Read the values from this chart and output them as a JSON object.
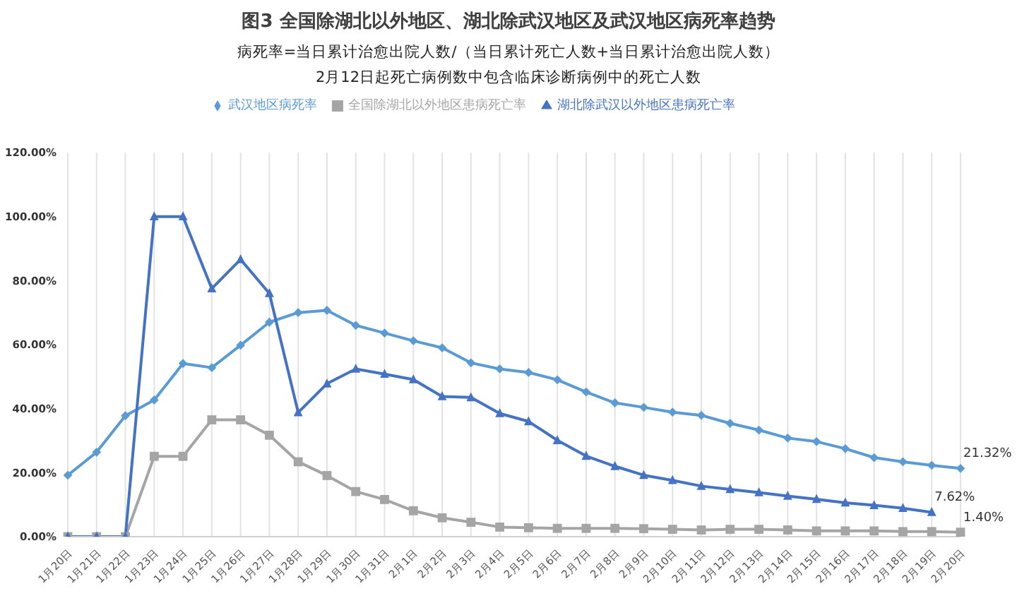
{
  "chart_data": {
    "type": "line",
    "title": "图3  全国除湖北以外地区、湖北除武汉地区及武汉地区病死率趋势",
    "subtitle": "病死率=当日累计治愈出院人数/（当日累计死亡人数+当日累计治愈出院人数）",
    "annotations": [
      "2月12日起死亡病例数中包含临床诊断病例中的死亡人数"
    ],
    "categories": [
      "1月20日",
      "1月21日",
      "1月22日",
      "1月23日",
      "1月24日",
      "1月25日",
      "1月26日",
      "1月27日",
      "1月28日",
      "1月29日",
      "1月30日",
      "1月31日",
      "2月1日",
      "2月2日",
      "2月3日",
      "2月4日",
      "2月5日",
      "2月6日",
      "2月7日",
      "2月8日",
      "2月9日",
      "2月10日",
      "2月11日",
      "2月12日",
      "2月13日",
      "2月14日",
      "2月15日",
      "2月16日",
      "2月17日",
      "2月18日",
      "2月19日",
      "2月20日"
    ],
    "series": [
      {
        "name": "武汉地区病死率",
        "color": "#5b9bd5",
        "marker": "diamond",
        "values": [
          19.2,
          26.4,
          37.8,
          42.7,
          54.1,
          52.8,
          59.8,
          67,
          70,
          70.7,
          66,
          63.6,
          61.2,
          59,
          54.3,
          52.4,
          51.3,
          49,
          45.2,
          41.8,
          40.4,
          38.9,
          37.9,
          35.4,
          33.3,
          30.8,
          29.7,
          27.5,
          24.7,
          23.4,
          22.3,
          21.32
        ],
        "value_labels": [
          null,
          null,
          null,
          null,
          null,
          null,
          null,
          null,
          null,
          null,
          null,
          null,
          null,
          null,
          null,
          null,
          null,
          null,
          null,
          null,
          null,
          null,
          null,
          null,
          null,
          null,
          null,
          null,
          null,
          null,
          null,
          "21.32%"
        ]
      },
      {
        "name": "全国除湖北以外地区患病死亡率",
        "color": "#a5a5a5",
        "marker": "square",
        "values": [
          0,
          0,
          0,
          25.1,
          25.1,
          36.5,
          36.5,
          31.7,
          23.4,
          19.1,
          14.1,
          11.6,
          8.1,
          5.9,
          4.5,
          3,
          2.8,
          2.6,
          2.6,
          2.6,
          2.5,
          2.3,
          2.1,
          2.3,
          2.3,
          2.1,
          1.8,
          1.8,
          1.8,
          1.6,
          1.6,
          1.4
        ],
        "value_labels": [
          null,
          null,
          null,
          null,
          null,
          null,
          null,
          null,
          null,
          null,
          null,
          null,
          null,
          null,
          null,
          null,
          null,
          null,
          null,
          null,
          null,
          null,
          null,
          null,
          null,
          null,
          null,
          null,
          null,
          null,
          null,
          "1.40%"
        ]
      },
      {
        "name": "湖北除武汉以外地区患病死亡率",
        "color": "#4472c4",
        "marker": "triangle",
        "values": [
          0,
          0,
          0,
          100,
          100,
          77.5,
          86.6,
          76,
          38.8,
          47.8,
          52.4,
          50.8,
          49.1,
          43.8,
          43.5,
          38.5,
          36,
          30.1,
          25.2,
          22,
          19.2,
          17.6,
          15.8,
          14.8,
          13.8,
          12.7,
          11.7,
          10.6,
          9.8,
          8.9,
          7.62,
          null
        ],
        "value_labels": [
          null,
          null,
          null,
          null,
          null,
          null,
          null,
          null,
          null,
          null,
          null,
          null,
          null,
          null,
          null,
          null,
          null,
          null,
          null,
          null,
          null,
          null,
          null,
          null,
          null,
          null,
          null,
          null,
          null,
          null,
          "7.62%",
          null
        ]
      }
    ],
    "ylim": [
      0,
      120
    ],
    "yticks": [
      {
        "value": 0,
        "label": "0.00%"
      },
      {
        "value": 20,
        "label": "20.00%"
      },
      {
        "value": 40,
        "label": "40.00%"
      },
      {
        "value": 60,
        "label": "60.00%"
      },
      {
        "value": 80,
        "label": "80.00%"
      },
      {
        "value": 100,
        "label": "100.00%"
      },
      {
        "value": 120,
        "label": "120.00%"
      }
    ],
    "grid": "x",
    "legend": "top",
    "line_style": "solid"
  }
}
